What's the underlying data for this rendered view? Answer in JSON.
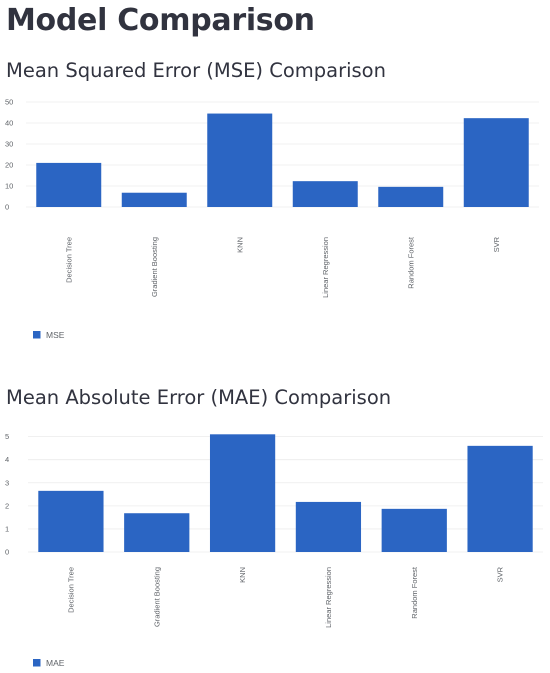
{
  "page": {
    "title": "Model Comparison"
  },
  "accent_color": "#2b65c3",
  "chart_data": [
    {
      "type": "bar",
      "title": "Mean Squared Error (MSE) Comparison",
      "categories": [
        "Decision Tree",
        "Gradient Boosting",
        "KNN",
        "Linear Regression",
        "Random Forest",
        "SVR"
      ],
      "series": [
        {
          "name": "MSE",
          "values": [
            21,
            6.8,
            44.5,
            12.3,
            9.6,
            42.3
          ],
          "color": "#2b65c3"
        }
      ],
      "yticks": [
        0,
        10,
        20,
        30,
        40,
        50
      ],
      "ylim": [
        0,
        50
      ],
      "grid": true,
      "legend": "bottom-left"
    },
    {
      "type": "bar",
      "title": "Mean Absolute Error (MAE) Comparison",
      "categories": [
        "Decision Tree",
        "Gradient Boosting",
        "KNN",
        "Linear Regression",
        "Random Forest",
        "SVR"
      ],
      "series": [
        {
          "name": "MAE",
          "values": [
            2.65,
            1.68,
            5.1,
            2.17,
            1.87,
            4.6
          ],
          "color": "#2b65c3"
        }
      ],
      "yticks": [
        0,
        1,
        2,
        3,
        4,
        5
      ],
      "ylim": [
        0,
        5.2
      ],
      "grid": true,
      "legend": "bottom-left"
    }
  ]
}
